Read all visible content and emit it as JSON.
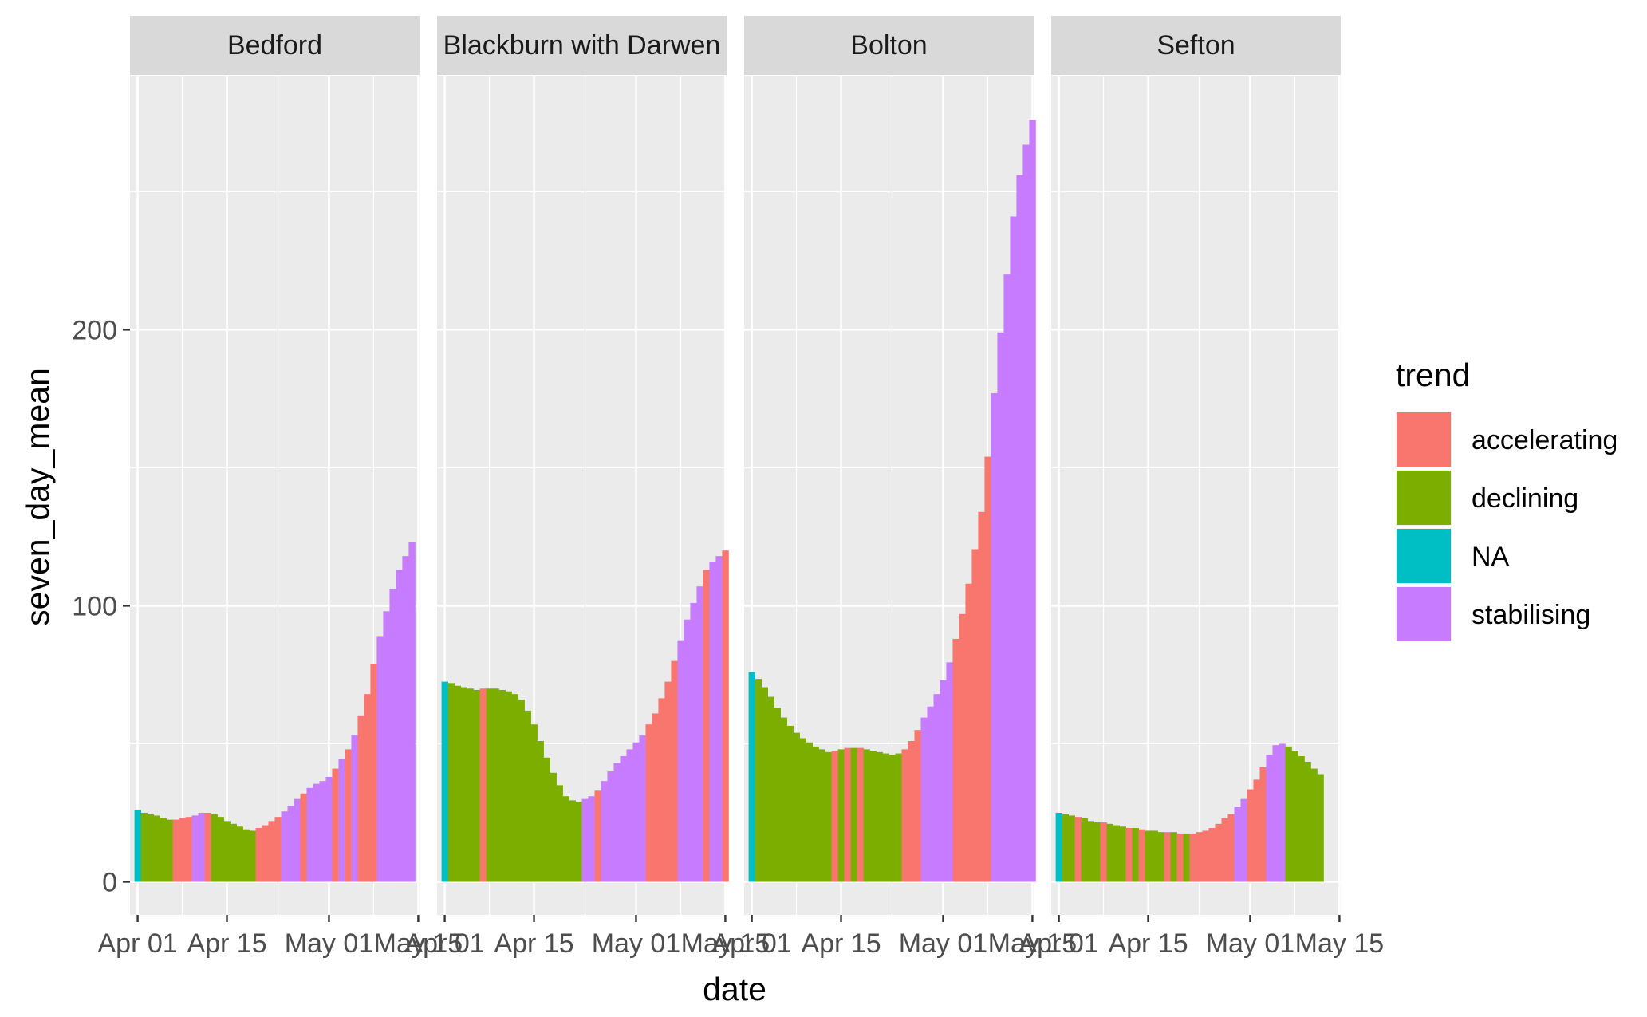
{
  "chart_data": {
    "type": "bar",
    "xlabel": "date",
    "ylabel": "seven_day_mean",
    "x_ticks": [
      "Apr 01",
      "Apr 15",
      "May 01",
      "May 15"
    ],
    "y_ticks": [
      0,
      100,
      200
    ],
    "ylim": [
      -12,
      292
    ],
    "xlim_days": [
      -1.2,
      44.2
    ],
    "x_axis": {
      "start_date": "Apr 01",
      "day_span": [
        0,
        44
      ]
    },
    "legend": {
      "title": "trend",
      "placement": "right",
      "entries": [
        {
          "label": "accelerating",
          "color": "#F8766D"
        },
        {
          "label": "declining",
          "color": "#7CAE00"
        },
        {
          "label": "NA",
          "color": "#00BFC4"
        },
        {
          "label": "stabilising",
          "color": "#C77CFF"
        }
      ]
    },
    "grid": true,
    "panels": [
      {
        "name": "Bedford",
        "start": 0,
        "values": [
          26,
          25,
          24.5,
          24,
          23,
          22.5,
          22.5,
          23,
          23.5,
          24,
          25,
          25,
          24.5,
          23.5,
          22,
          21,
          20,
          19,
          18.5,
          19.5,
          20.5,
          22,
          23.5,
          25.5,
          27.5,
          30,
          32,
          34,
          35.5,
          36.5,
          38,
          41,
          44.5,
          48,
          53,
          60,
          68,
          79,
          89,
          98,
          106,
          113,
          118,
          123
        ],
        "trends": [
          "NA",
          "D",
          "D",
          "D",
          "D",
          "D",
          "A",
          "A",
          "A",
          "S",
          "S",
          "A",
          "D",
          "D",
          "D",
          "D",
          "D",
          "D",
          "D",
          "A",
          "A",
          "A",
          "A",
          "S",
          "S",
          "S",
          "A",
          "S",
          "S",
          "S",
          "S",
          "A",
          "S",
          "A",
          "S",
          "A",
          "A",
          "A",
          "S",
          "S",
          "S",
          "S",
          "S",
          "S"
        ]
      },
      {
        "name": "Blackburn with Darwen",
        "start": 0,
        "values": [
          72.5,
          72,
          71,
          70.5,
          70,
          69.5,
          70,
          70,
          70,
          69.5,
          69,
          68,
          66,
          62,
          57,
          51,
          45,
          39.5,
          35,
          31,
          29.5,
          29,
          30,
          31,
          33,
          36.5,
          40,
          43,
          45.5,
          48,
          50.5,
          53,
          57,
          61,
          66.5,
          72.5,
          80,
          87.5,
          95,
          101,
          107,
          113,
          116,
          118,
          120
        ],
        "trends": [
          "NA",
          "D",
          "D",
          "D",
          "D",
          "D",
          "A",
          "D",
          "D",
          "D",
          "D",
          "D",
          "D",
          "D",
          "D",
          "D",
          "D",
          "D",
          "D",
          "D",
          "D",
          "D",
          "S",
          "S",
          "A",
          "S",
          "S",
          "S",
          "S",
          "S",
          "S",
          "S",
          "A",
          "A",
          "A",
          "A",
          "A",
          "S",
          "S",
          "S",
          "S",
          "A",
          "S",
          "S",
          "A"
        ]
      },
      {
        "name": "Bolton",
        "start": 0,
        "values": [
          76,
          73.5,
          70.5,
          67,
          63,
          59.5,
          56.5,
          54,
          52,
          50.5,
          49,
          48,
          47,
          47.5,
          48,
          48.5,
          48.5,
          48.5,
          48,
          47.5,
          47,
          46.5,
          46,
          46.5,
          48,
          51,
          55,
          59.5,
          63.5,
          68,
          73,
          79.5,
          88,
          97,
          108,
          120.5,
          134,
          154,
          177,
          199,
          220,
          241,
          256,
          267,
          276
        ],
        "trends": [
          "NA",
          "D",
          "D",
          "D",
          "D",
          "D",
          "D",
          "D",
          "D",
          "D",
          "D",
          "D",
          "D",
          "A",
          "D",
          "A",
          "D",
          "A",
          "D",
          "D",
          "D",
          "D",
          "D",
          "D",
          "A",
          "A",
          "A",
          "S",
          "S",
          "S",
          "S",
          "S",
          "A",
          "A",
          "A",
          "A",
          "A",
          "A",
          "S",
          "S",
          "S",
          "S",
          "S",
          "S",
          "S"
        ]
      },
      {
        "name": "Sefton",
        "start": 0,
        "values": [
          25,
          24.5,
          24,
          23.5,
          23,
          22,
          21.5,
          21.5,
          21,
          20.5,
          20,
          19.5,
          19.5,
          19,
          18.5,
          18.5,
          18,
          18,
          18,
          17.5,
          17.5,
          17.5,
          18,
          18.5,
          19.5,
          21,
          23,
          24.5,
          27,
          30,
          33.5,
          37,
          41.5,
          46,
          49.5,
          50,
          49,
          47.5,
          45.5,
          43.5,
          41,
          39
        ],
        "trends": [
          "NA",
          "D",
          "D",
          "A",
          "D",
          "D",
          "D",
          "A",
          "D",
          "D",
          "D",
          "A",
          "D",
          "A",
          "D",
          "D",
          "D",
          "A",
          "D",
          "A",
          "D",
          "A",
          "A",
          "A",
          "A",
          "A",
          "A",
          "A",
          "S",
          "S",
          "A",
          "A",
          "A",
          "S",
          "S",
          "S",
          "D",
          "D",
          "D",
          "D",
          "D",
          "D"
        ]
      }
    ]
  }
}
